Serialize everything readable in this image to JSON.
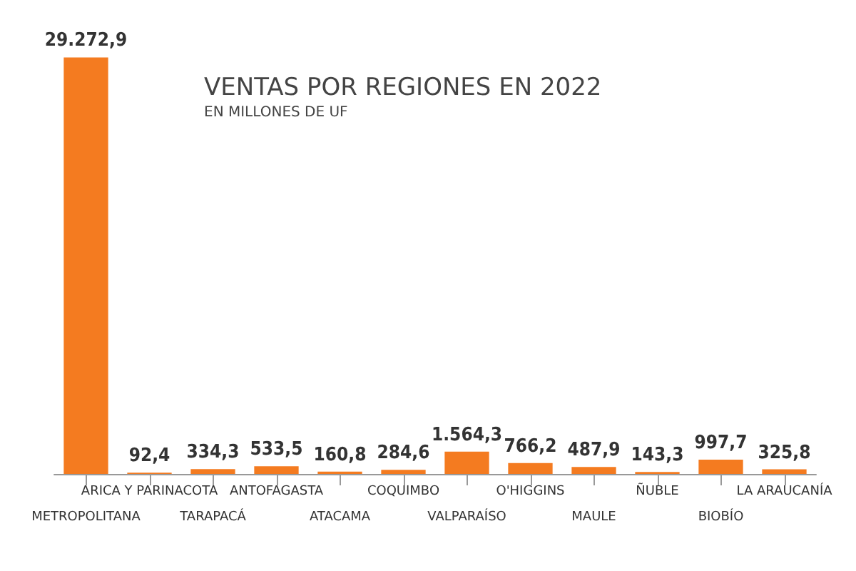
{
  "chart_data": {
    "type": "bar",
    "title": "VENTAS POR REGIONES EN 2022",
    "subtitle": "EN MILLONES DE UF",
    "categories": [
      "METROPOLITANA",
      "ARICA Y PARINACOTA",
      "TARAPACÁ",
      "ANTOFAGASTA",
      "ATACAMA",
      "COQUIMBO",
      "VALPARAÍSO",
      "O'HIGGINS",
      "MAULE",
      "ÑUBLE",
      "BIOBÍO",
      "LA ARAUCANÍA"
    ],
    "values": [
      29272.9,
      92.4,
      334.3,
      533.5,
      160.8,
      284.6,
      1564.3,
      766.2,
      487.9,
      143.3,
      997.7,
      325.8
    ],
    "value_labels": [
      "29.272,9",
      "92,4",
      "334,3",
      "533,5",
      "160,8",
      "284,6",
      "1.564,3",
      "766,2",
      "487,9",
      "143,3",
      "997,7",
      "325,8"
    ],
    "color": "#f47b20"
  }
}
